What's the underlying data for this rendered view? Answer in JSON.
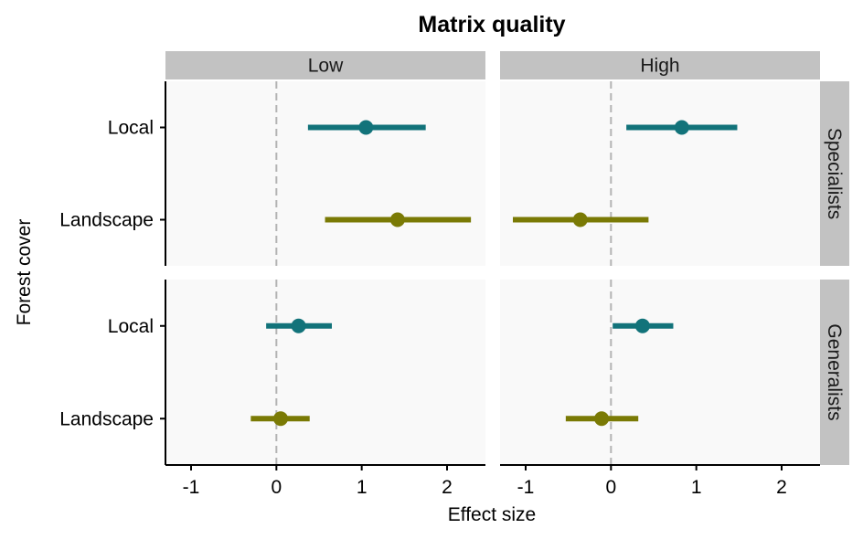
{
  "chart_data": {
    "type": "dot-whisker",
    "title": "Matrix quality",
    "xlabel": "Effect size",
    "ylabel": "Forest cover",
    "xlim": [
      -1.3,
      2.45
    ],
    "x_ticks": [
      -1,
      0,
      1,
      2
    ],
    "x_tick_labels": [
      "-1",
      "0",
      "1",
      "2"
    ],
    "reference_line": 0,
    "categories": [
      "Local",
      "Landscape"
    ],
    "facet_columns": [
      "Low",
      "High"
    ],
    "facet_rows": [
      "Specialists",
      "Generalists"
    ],
    "colors": {
      "Local": "#12737a",
      "Landscape": "#7a7a05"
    },
    "panels": [
      {
        "column": "Low",
        "row": "Specialists",
        "points": [
          {
            "category": "Local",
            "estimate": 1.05,
            "lower": 0.37,
            "upper": 1.75
          },
          {
            "category": "Landscape",
            "estimate": 1.42,
            "lower": 0.57,
            "upper": 2.28
          }
        ]
      },
      {
        "column": "High",
        "row": "Specialists",
        "points": [
          {
            "category": "Local",
            "estimate": 0.83,
            "lower": 0.18,
            "upper": 1.48
          },
          {
            "category": "Landscape",
            "estimate": -0.36,
            "lower": -1.15,
            "upper": 0.44
          }
        ]
      },
      {
        "column": "Low",
        "row": "Generalists",
        "points": [
          {
            "category": "Local",
            "estimate": 0.26,
            "lower": -0.12,
            "upper": 0.65
          },
          {
            "category": "Landscape",
            "estimate": 0.05,
            "lower": -0.3,
            "upper": 0.39
          }
        ]
      },
      {
        "column": "High",
        "row": "Generalists",
        "points": [
          {
            "category": "Local",
            "estimate": 0.37,
            "lower": 0.02,
            "upper": 0.73
          },
          {
            "category": "Landscape",
            "estimate": -0.11,
            "lower": -0.53,
            "upper": 0.32
          }
        ]
      }
    ],
    "grid": false
  }
}
